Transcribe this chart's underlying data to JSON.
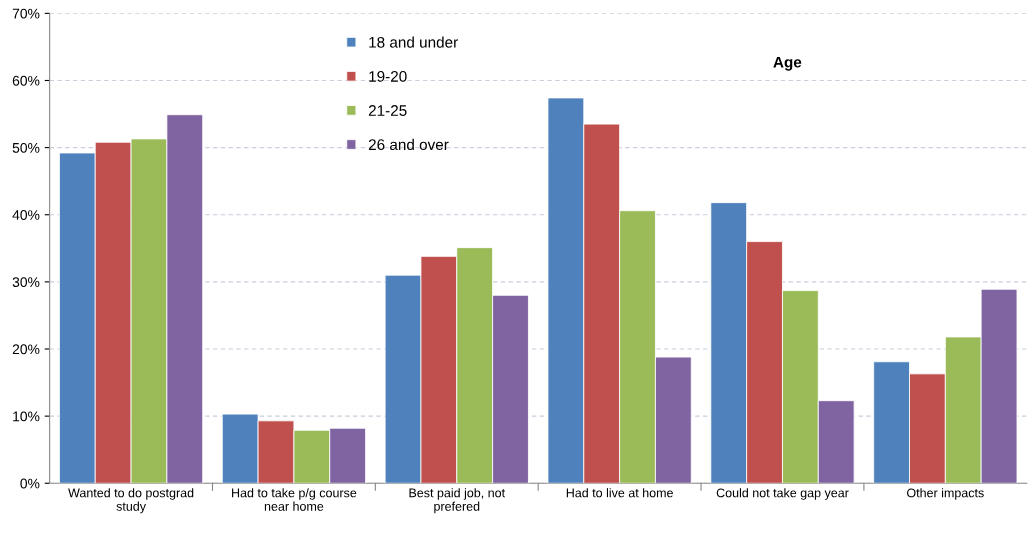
{
  "chart_data": {
    "type": "bar",
    "legend_title": "Age",
    "categories": [
      "Wanted to do postgrad study",
      "Had to take p/g course near home",
      "Best paid job, not prefered",
      "Had to live at home",
      "Could not take gap year",
      "Other impacts"
    ],
    "series": [
      {
        "name": "18 and under",
        "color": "#4f81bd",
        "values": [
          49.2,
          10.3,
          31.0,
          57.4,
          41.8,
          18.1
        ]
      },
      {
        "name": "19-20",
        "color": "#c0504d",
        "values": [
          50.8,
          9.3,
          33.8,
          53.5,
          36.0,
          16.3
        ]
      },
      {
        "name": "21-25",
        "color": "#9bbb59",
        "values": [
          51.3,
          7.9,
          35.1,
          40.6,
          28.7,
          21.8
        ]
      },
      {
        "name": "26 and over",
        "color": "#8064a2",
        "values": [
          54.9,
          8.2,
          28.0,
          18.8,
          12.3,
          28.9
        ]
      }
    ],
    "ylim": [
      0,
      70
    ],
    "yticks": [
      {
        "value": 0,
        "label": "0%"
      },
      {
        "value": 10,
        "label": "10%"
      },
      {
        "value": 20,
        "label": "20%"
      },
      {
        "value": 30,
        "label": "30%"
      },
      {
        "value": 40,
        "label": "40%"
      },
      {
        "value": 50,
        "label": "50%"
      },
      {
        "value": 60,
        "label": "60%"
      },
      {
        "value": 70,
        "label": "70%"
      }
    ],
    "grid": "y",
    "legend": "top"
  }
}
